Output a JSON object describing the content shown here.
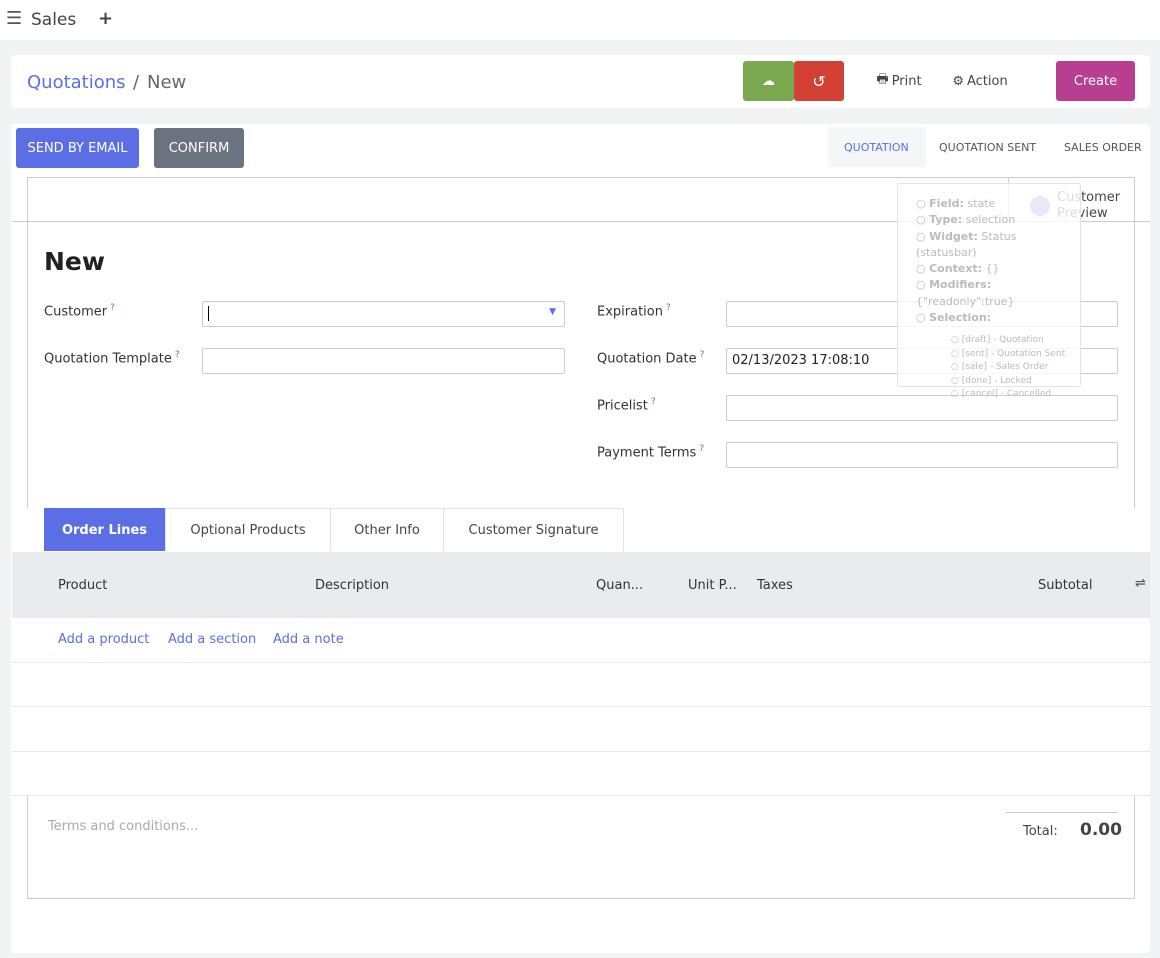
{
  "topbar": {
    "app": "Sales",
    "menu_icon": "hamburger-icon",
    "add_icon": "plus-icon"
  },
  "header": {
    "breadcrumb_parent": "Quotations",
    "breadcrumb_sep": "/",
    "breadcrumb_current": "New",
    "print": "Print",
    "action": "Action",
    "create": "Create",
    "save_icon": "cloud-upload-icon",
    "discard_icon": "undo-icon"
  },
  "actions": {
    "send_email": "SEND BY EMAIL",
    "confirm": "CONFIRM"
  },
  "statusbar": [
    "QUOTATION",
    "QUOTATION SENT",
    "SALES ORDER"
  ],
  "customer_preview": "Customer Preview",
  "tooltip": {
    "field_k": "Field:",
    "field_v": "state",
    "type_k": "Type:",
    "type_v": "selection",
    "widget_k": "Widget:",
    "widget_v": "Status (statusbar)",
    "context_k": "Context:",
    "context_v": "{}",
    "modifiers_k": "Modifiers:",
    "modifiers_v": "{\"readonly\":true}",
    "selection_k": "Selection:",
    "options": [
      "[draft] - Quotation",
      "[sent] - Quotation Sent",
      "[sale] - Sales Order",
      "[done] - Locked",
      "[cancel] - Cancelled"
    ]
  },
  "form": {
    "title": "New",
    "customer": "Customer",
    "template": "Quotation Template",
    "expiration": "Expiration",
    "date": "Quotation Date",
    "date_value": "02/13/2023 17:08:10",
    "pricelist": "Pricelist",
    "payment_terms": "Payment Terms",
    "help": "?"
  },
  "tabs": [
    "Order Lines",
    "Optional Products",
    "Other Info",
    "Customer Signature"
  ],
  "table": {
    "columns": [
      "Product",
      "Description",
      "Quan...",
      "Unit P...",
      "Taxes",
      "Subtotal"
    ],
    "add_product": "Add a product",
    "add_section": "Add a section",
    "add_note": "Add a note"
  },
  "footer": {
    "terms_placeholder": "Terms and conditions...",
    "total_label": "Total:",
    "total_value": "0.00"
  },
  "colors": {
    "primary": "#5c6ee6",
    "save": "#7aa84f",
    "discard": "#d34135",
    "create": "#b83f8f",
    "confirm": "#6b7280"
  }
}
